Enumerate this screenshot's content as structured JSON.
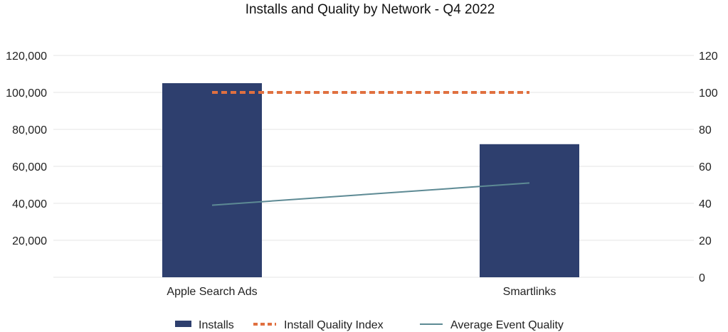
{
  "chart_data": {
    "type": "bar",
    "title": "Installs and Quality by Network - Q4 2022",
    "categories": [
      "Apple Search Ads",
      "Smartlinks"
    ],
    "series": [
      {
        "name": "Installs",
        "kind": "bar",
        "axis": "left",
        "color": "#2e3f6e",
        "values": [
          105000,
          72000
        ]
      },
      {
        "name": "Install Quality Index",
        "kind": "line",
        "dash": true,
        "axis": "right",
        "color": "#e07040",
        "values": [
          100,
          100
        ]
      },
      {
        "name": "Average Event Quality",
        "kind": "line",
        "axis": "right",
        "color": "#5d8a94",
        "values": [
          39,
          51
        ]
      }
    ],
    "y_left": {
      "min": 0,
      "max": 120000,
      "ticks": [
        "",
        "20,000",
        "40,000",
        "60,000",
        "80,000",
        "100,000",
        "120,000"
      ]
    },
    "y_right": {
      "min": 0,
      "max": 120,
      "ticks": [
        "0",
        "20",
        "40",
        "60",
        "80",
        "100",
        "120"
      ]
    },
    "grid": true,
    "legend_position": "bottom"
  }
}
